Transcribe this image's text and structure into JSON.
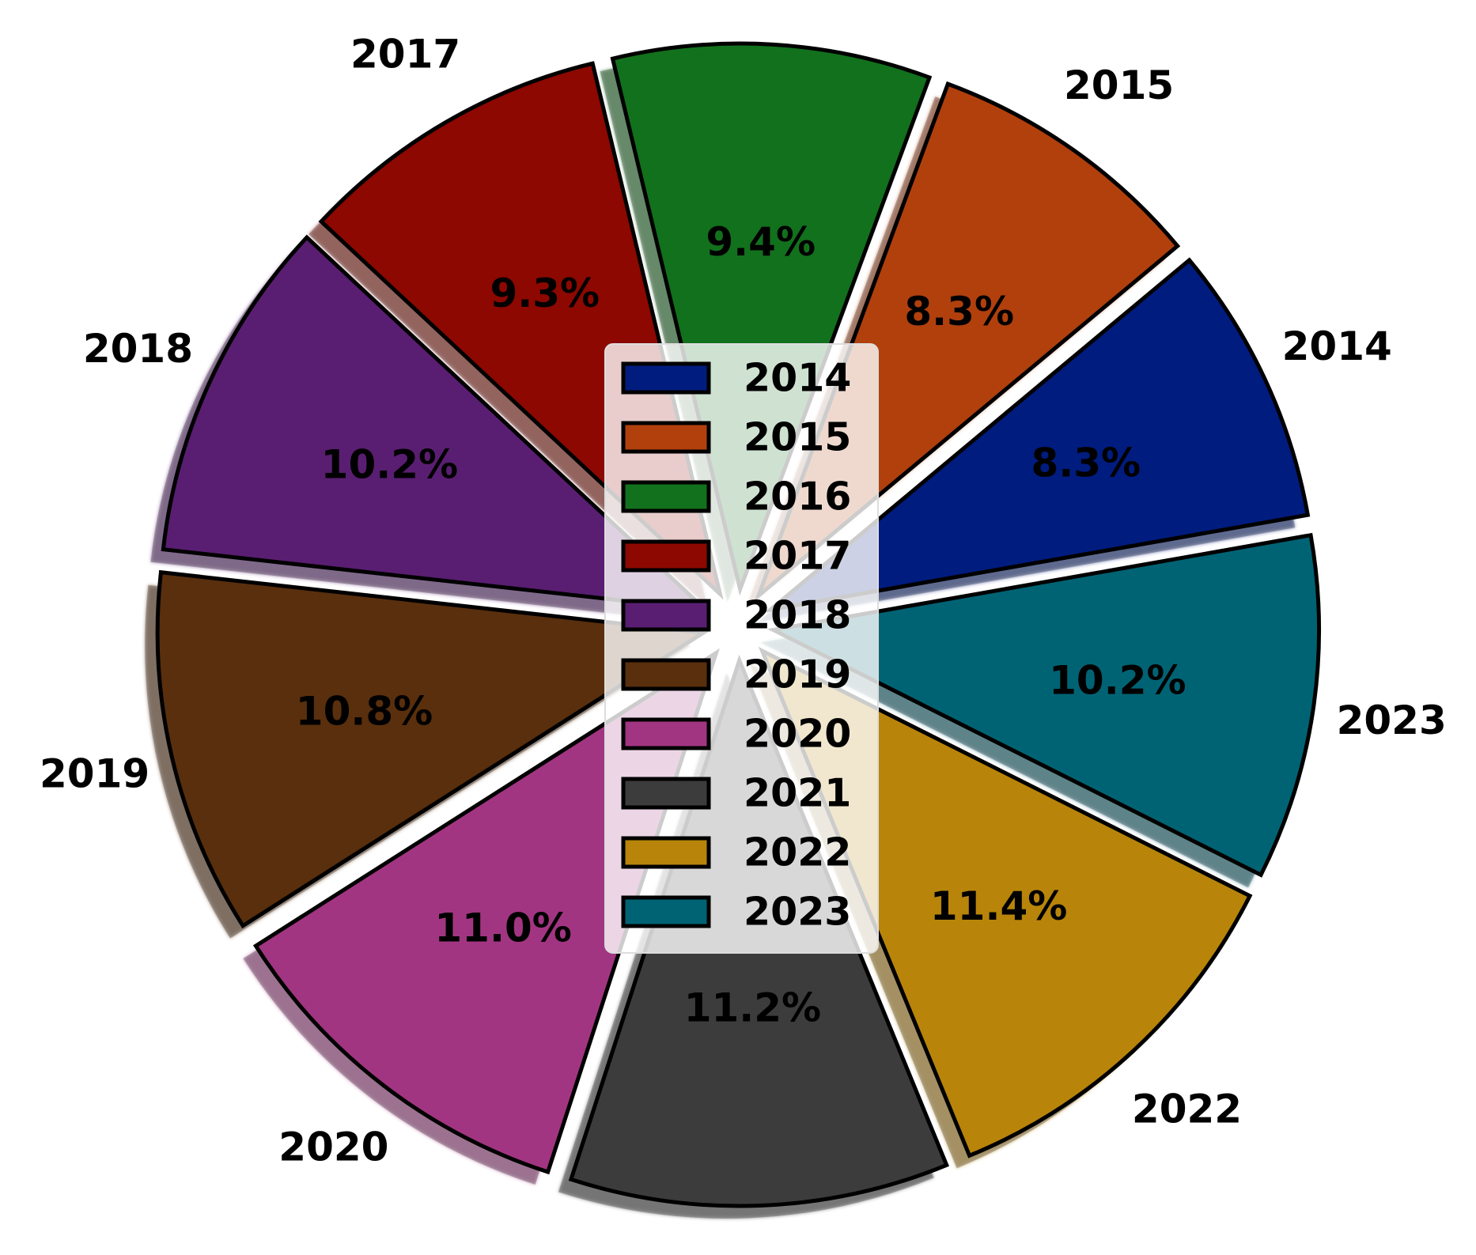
{
  "chart_data": {
    "type": "pie",
    "title": "",
    "categories": [
      "2014",
      "2015",
      "2016",
      "2017",
      "2018",
      "2019",
      "2020",
      "2021",
      "2022",
      "2023"
    ],
    "values": [
      8.3,
      8.3,
      9.4,
      9.3,
      10.2,
      10.8,
      11.0,
      11.2,
      11.4,
      10.2
    ],
    "percent_labels": [
      "8.3%",
      "8.3%",
      "9.4%",
      "9.3%",
      "10.2%",
      "10.8%",
      "11.0%",
      "11.2%",
      "11.4%",
      "10.2%"
    ],
    "colors": [
      "#001c7f",
      "#b1400d",
      "#12711c",
      "#8c0800",
      "#591e71",
      "#592f0d",
      "#a23582",
      "#3c3c3c",
      "#b8850a",
      "#006374"
    ],
    "start_angle_deg": 10,
    "direction": "counterclockwise",
    "exploded": true,
    "shadow": true,
    "legend": {
      "placement": "center",
      "entries": [
        "2014",
        "2015",
        "2016",
        "2017",
        "2018",
        "2019",
        "2020",
        "2021",
        "2022",
        "2023"
      ]
    }
  }
}
